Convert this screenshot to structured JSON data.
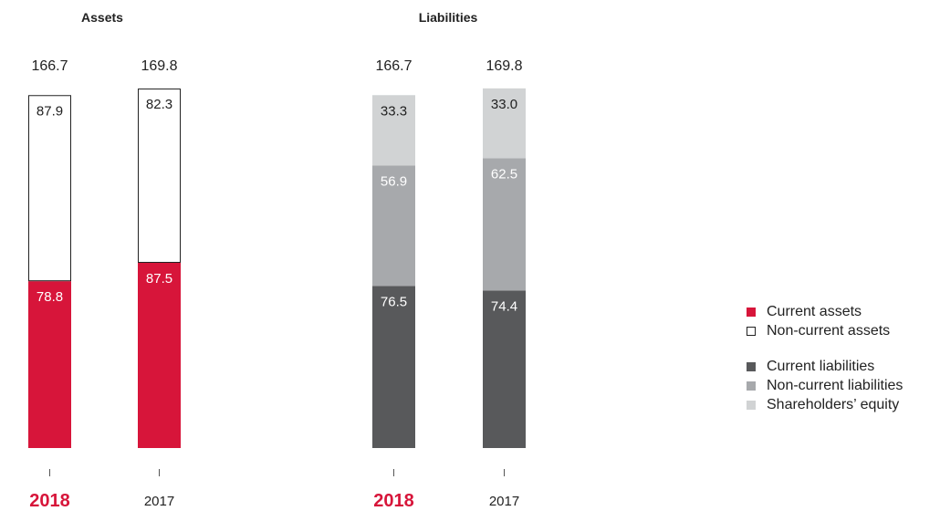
{
  "chart_data": [
    {
      "type": "stacked_bar",
      "title": "Assets",
      "categories": [
        "2018",
        "2017"
      ],
      "highlight_category": "2018",
      "totals": [
        "166.7",
        "169.8"
      ],
      "series": [
        {
          "name": "Current assets",
          "values": [
            78.8,
            87.5
          ],
          "labels": [
            "78.8",
            "87.5"
          ],
          "color": "#d7153a",
          "label_color": "#ffffff"
        },
        {
          "name": "Non-current assets",
          "values": [
            87.9,
            82.3
          ],
          "labels": [
            "87.9",
            "82.3"
          ],
          "color": "#ffffff",
          "stroke": "#222222",
          "label_color": "#222222"
        }
      ]
    },
    {
      "type": "stacked_bar",
      "title": "Liabilities",
      "categories": [
        "2018",
        "2017"
      ],
      "highlight_category": "2018",
      "totals": [
        "166.7",
        "169.8"
      ],
      "series": [
        {
          "name": "Current liabilities",
          "values": [
            76.5,
            74.4
          ],
          "labels": [
            "76.5",
            "74.4"
          ],
          "color": "#58595b",
          "label_color": "#ffffff"
        },
        {
          "name": "Non-current liabilities",
          "values": [
            56.9,
            62.5
          ],
          "labels": [
            "56.9",
            "62.5"
          ],
          "color": "#a7a9ac",
          "label_color": "#ffffff"
        },
        {
          "name": "Shareholders’ equity",
          "values": [
            33.3,
            33.0
          ],
          "labels": [
            "33.3",
            "33.0"
          ],
          "color": "#d1d3d4",
          "label_color": "#222222"
        }
      ]
    }
  ],
  "legend": {
    "groups": [
      {
        "items": [
          {
            "label": "Current assets",
            "color": "#d7153a"
          },
          {
            "label": "Non-current assets",
            "color": "#ffffff",
            "stroke": "#222222"
          }
        ]
      },
      {
        "items": [
          {
            "label": "Current liabilities",
            "color": "#58595b"
          },
          {
            "label": "Non-current liabilities",
            "color": "#a7a9ac"
          },
          {
            "label": "Shareholders’ equity",
            "color": "#d1d3d4"
          }
        ]
      }
    ]
  },
  "colors": {
    "highlight": "#d7153a",
    "text": "#222222"
  }
}
